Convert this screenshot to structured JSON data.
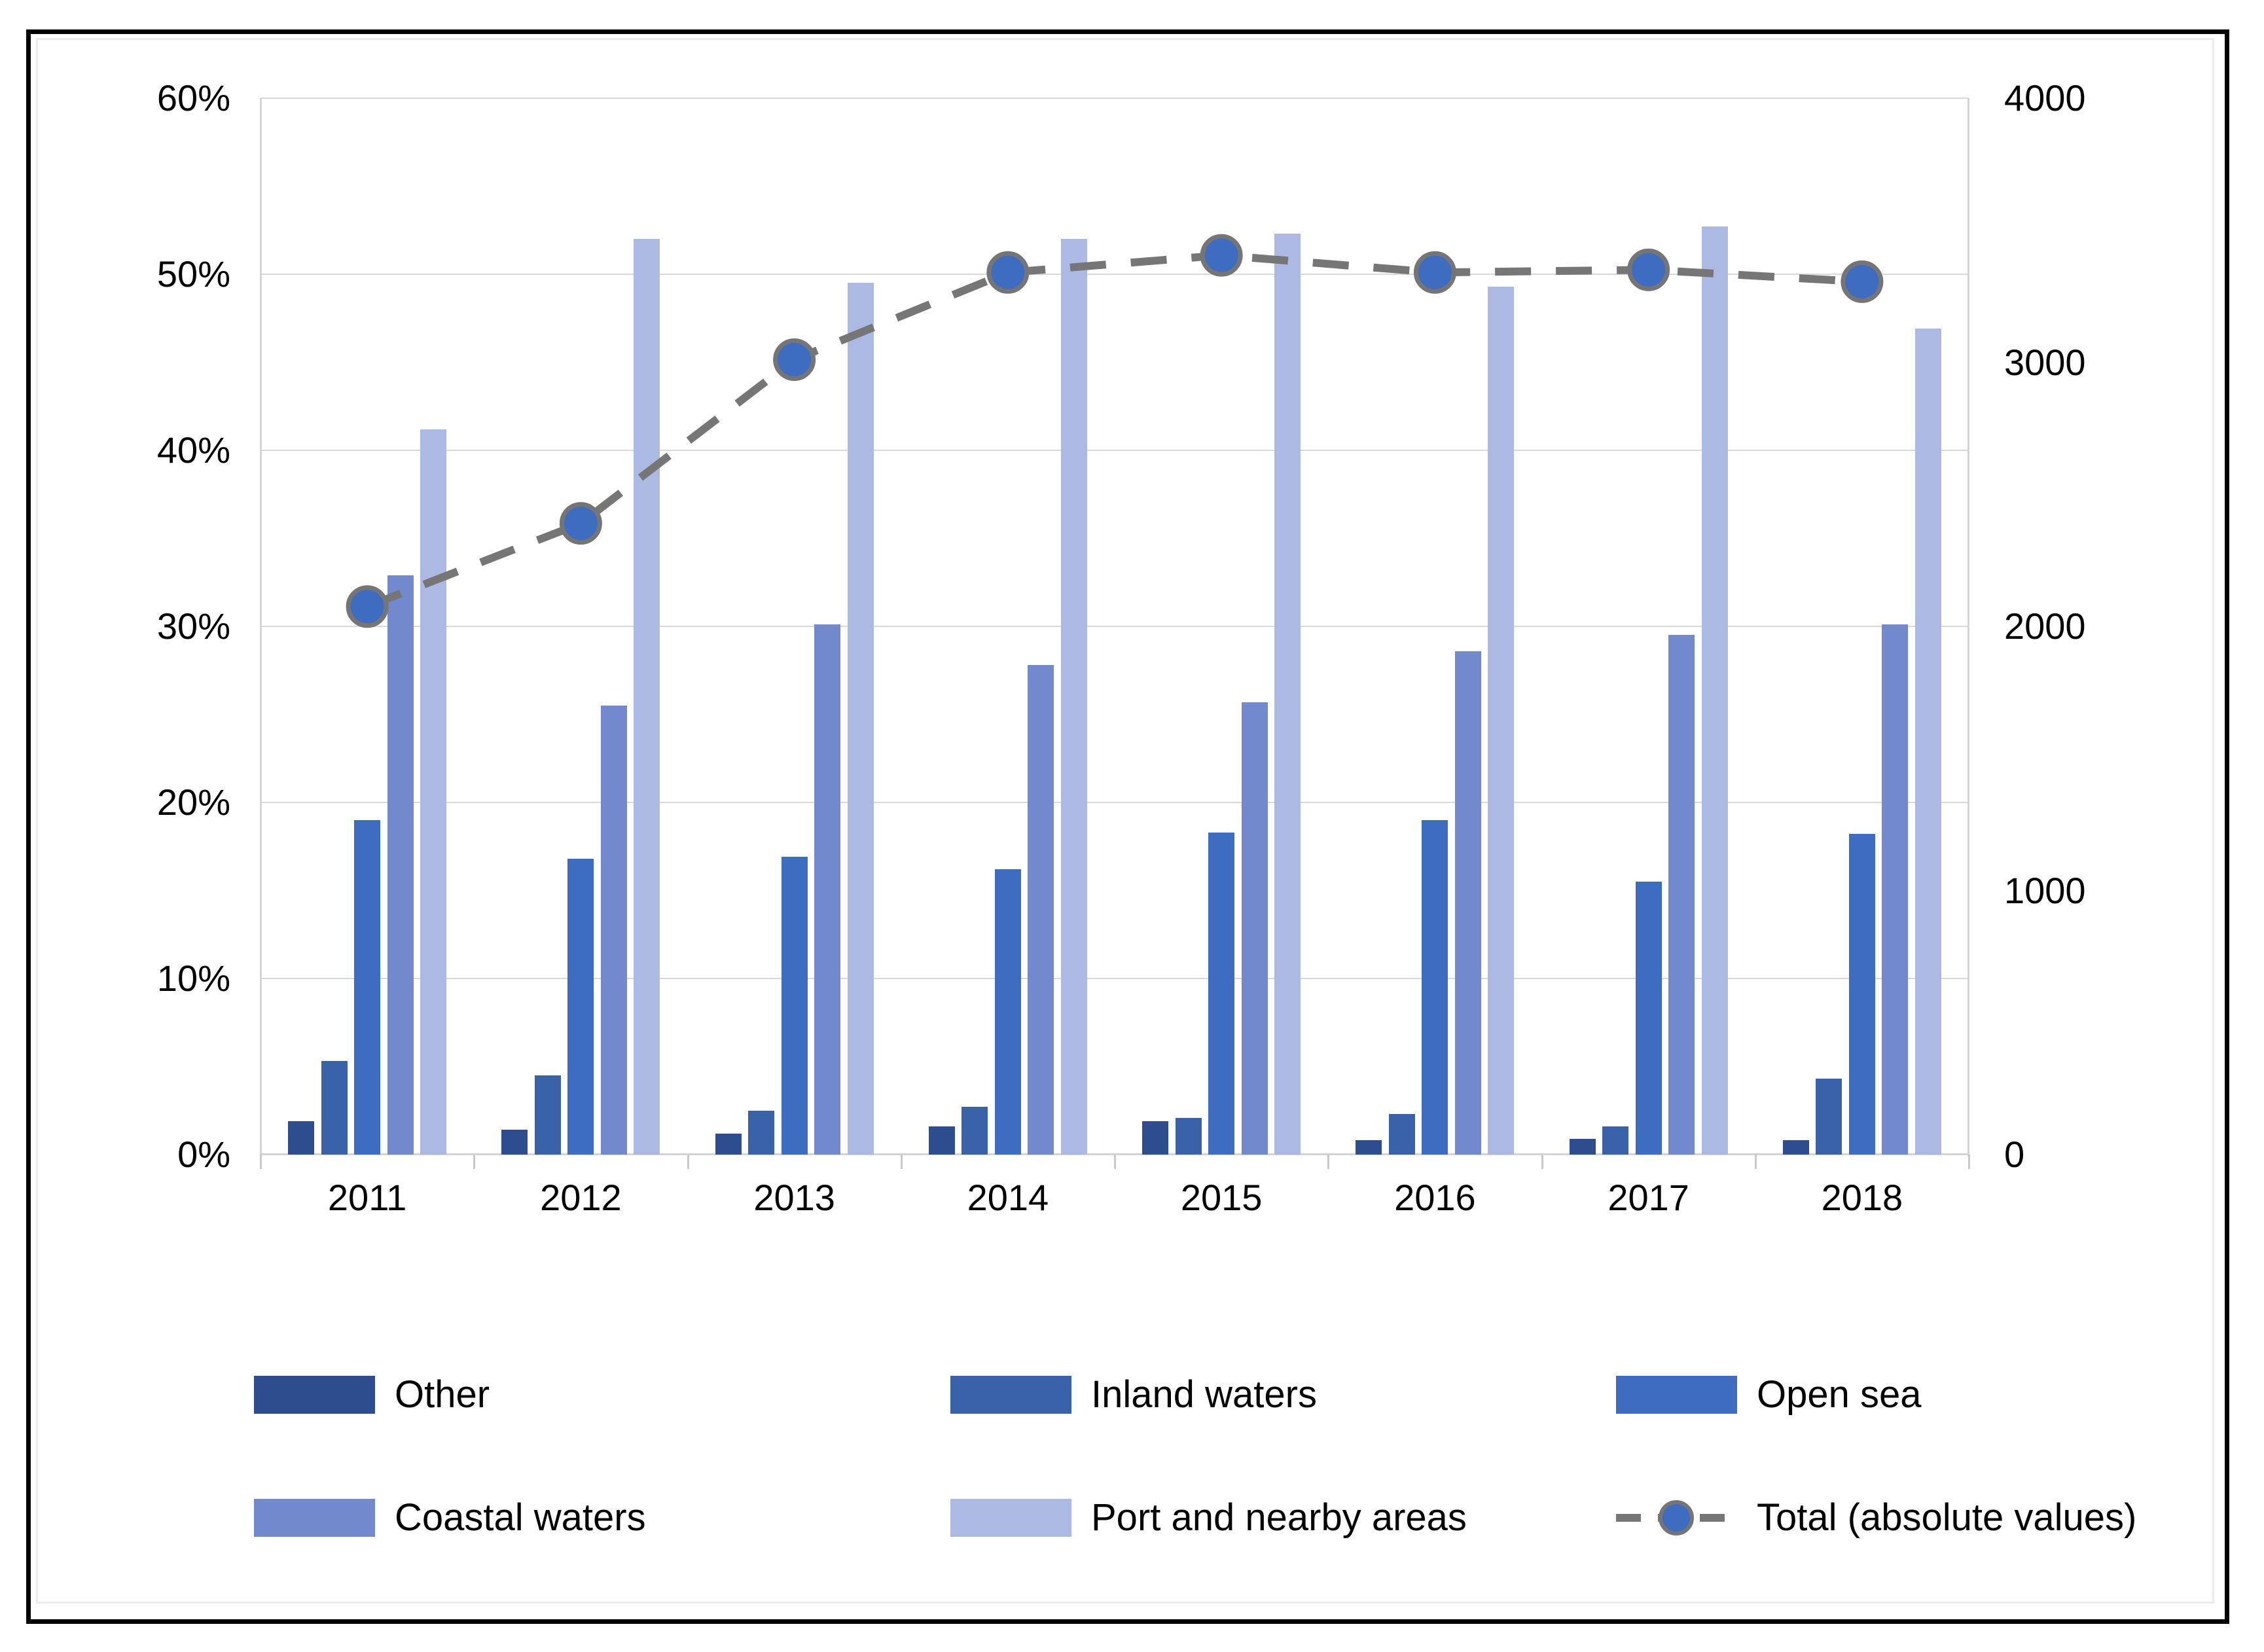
{
  "chart_data": {
    "type": "bar",
    "title": "",
    "categories": [
      "2011",
      "2012",
      "2013",
      "2014",
      "2015",
      "2016",
      "2017",
      "2018"
    ],
    "series": [
      {
        "name": "Other",
        "axis": "left",
        "unit": "%",
        "color_key": "other",
        "values": [
          1.9,
          1.4,
          1.2,
          1.6,
          1.9,
          0.8,
          0.9,
          0.8
        ]
      },
      {
        "name": "Inland waters",
        "axis": "left",
        "unit": "%",
        "color_key": "inland",
        "values": [
          5.3,
          4.5,
          2.5,
          2.7,
          2.1,
          2.3,
          1.6,
          4.3
        ]
      },
      {
        "name": "Open sea",
        "axis": "left",
        "unit": "%",
        "color_key": "open_sea",
        "values": [
          19.0,
          16.8,
          16.9,
          16.2,
          18.3,
          19.0,
          15.5,
          18.2
        ]
      },
      {
        "name": "Coastal waters",
        "axis": "left",
        "unit": "%",
        "color_key": "coastal",
        "values": [
          32.9,
          25.5,
          30.1,
          27.8,
          25.7,
          28.6,
          29.5,
          30.1
        ]
      },
      {
        "name": "Port and nearby areas",
        "axis": "left",
        "unit": "%",
        "color_key": "port",
        "values": [
          41.2,
          52.0,
          49.5,
          52.0,
          52.3,
          49.3,
          52.7,
          46.9
        ]
      }
    ],
    "line_series": {
      "name": "Total (absolute values)",
      "axis": "right",
      "type": "line-dashed-with-markers",
      "values": [
        2075,
        2390,
        3010,
        3340,
        3405,
        3340,
        3350,
        3305
      ]
    },
    "xlabel": "",
    "ylabel": "",
    "ylim_left": [
      0,
      60
    ],
    "ylim_right": [
      0,
      4000
    ],
    "grid": true,
    "legend_position": "bottom"
  },
  "axes": {
    "left_ticks": [
      "0%",
      "10%",
      "20%",
      "30%",
      "40%",
      "50%",
      "60%"
    ],
    "right_ticks": [
      "0",
      "1000",
      "2000",
      "3000",
      "4000"
    ]
  },
  "legend": {
    "items": [
      {
        "label": "Other",
        "type": "swatch",
        "color_key": "other"
      },
      {
        "label": "Inland waters",
        "type": "swatch",
        "color_key": "inland"
      },
      {
        "label": "Open sea",
        "type": "swatch",
        "color_key": "open_sea"
      },
      {
        "label": "Coastal waters",
        "type": "swatch",
        "color_key": "coastal"
      },
      {
        "label": "Port and nearby areas",
        "type": "swatch",
        "color_key": "port"
      },
      {
        "label": "Total (absolute values)",
        "type": "dashed-line-marker",
        "color_key": "total_line"
      }
    ]
  },
  "colors": {
    "other": "#2E4D8E",
    "inland": "#3A62A9",
    "open_sea": "#3E6CC0",
    "coastal": "#7289CE",
    "port": "#ACB9E3",
    "total_line": "#767676",
    "marker_fill": "#3E6CC0",
    "marker_stroke": "#757575",
    "grid": "#D9D9D9",
    "axis": "#D4D4D4",
    "text": "#000000",
    "figure_border": "#000000",
    "chart_frame": "#ECECEC"
  }
}
